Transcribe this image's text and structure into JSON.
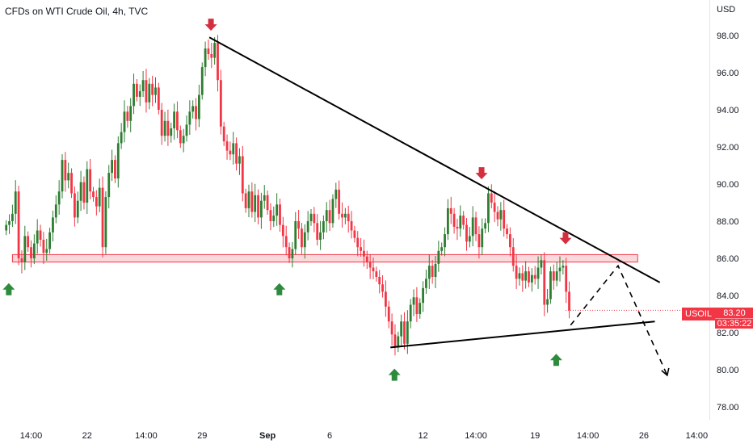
{
  "title": "CFDs on WTI Crude Oil, 4h, TVC",
  "currency": "USD",
  "symbol": "USOIL",
  "price": "83.20",
  "countdown": "03:35:22",
  "colors": {
    "up": "#26a69a",
    "upBody": "#2e7d32",
    "down": "#f23645",
    "zone": "#f8c8cc",
    "zoneStroke": "#f23645",
    "arrowUp": "#2e8b3e",
    "arrowDown": "#d32f3f"
  },
  "chart_data": {
    "type": "candlestick",
    "ylim": [
      77,
      100
    ],
    "y_ticks": [
      "98.00",
      "96.00",
      "94.00",
      "92.00",
      "90.00",
      "88.00",
      "86.00",
      "84.00",
      "82.00",
      "80.00",
      "78.00"
    ],
    "x_ticks": [
      {
        "label": "14:00",
        "i": 10,
        "bold": false
      },
      {
        "label": "22",
        "i": 28,
        "bold": false
      },
      {
        "label": "14:00",
        "i": 47,
        "bold": false
      },
      {
        "label": "29",
        "i": 65,
        "bold": false
      },
      {
        "label": "Sep",
        "i": 86,
        "bold": true
      },
      {
        "label": "6",
        "i": 106,
        "bold": false
      },
      {
        "label": "12",
        "i": 136,
        "bold": false
      },
      {
        "label": "14:00",
        "i": 153,
        "bold": false
      },
      {
        "label": "19",
        "i": 172,
        "bold": false
      },
      {
        "label": "14:00",
        "i": 189,
        "bold": false
      },
      {
        "label": "26",
        "i": 207,
        "bold": false
      },
      {
        "label": "14:00",
        "i": 224,
        "bold": false
      }
    ],
    "closes": [
      87.8,
      88.0,
      88.4,
      89.6,
      86.0,
      85.8,
      87.2,
      86.6,
      86.0,
      86.8,
      87.5,
      87.0,
      86.3,
      86.5,
      87.4,
      88.2,
      88.9,
      89.6,
      91.3,
      90.2,
      90.6,
      89.5,
      88.2,
      89.1,
      90.1,
      89.0,
      90.8,
      89.6,
      89.3,
      88.8,
      89.8,
      86.6,
      89.3,
      90.6,
      91.3,
      90.3,
      92.2,
      92.8,
      93.9,
      93.4,
      94.2,
      95.4,
      94.7,
      95.0,
      95.6,
      94.4,
      95.4,
      94.8,
      95.2,
      94.0,
      92.6,
      93.4,
      92.6,
      93.0,
      93.9,
      92.9,
      92.2,
      92.6,
      93.2,
      93.9,
      94.2,
      93.5,
      94.8,
      96.3,
      97.3,
      97.0,
      96.8,
      97.6,
      95.6,
      93.1,
      92.3,
      91.8,
      91.6,
      92.2,
      91.1,
      91.5,
      89.5,
      88.7,
      89.6,
      88.5,
      89.4,
      88.2,
      89.1,
      89.4,
      88.6,
      88.0,
      88.3,
      88.9,
      87.8,
      87.2,
      86.6,
      86.0,
      86.5,
      88.0,
      87.6,
      86.6,
      87.4,
      88.0,
      88.4,
      87.9,
      87.0,
      87.4,
      88.0,
      88.6,
      87.9,
      89.2,
      89.7,
      88.4,
      88.2,
      88.4,
      88.0,
      87.5,
      87.1,
      86.6,
      86.4,
      86.1,
      85.8,
      85.5,
      85.3,
      85.0,
      84.6,
      84.2,
      83.4,
      82.6,
      81.9,
      81.2,
      81.8,
      82.6,
      81.4,
      82.6,
      83.5,
      83.9,
      83.0,
      83.6,
      84.4,
      84.9,
      85.6,
      85.0,
      85.7,
      86.4,
      86.6,
      87.3,
      88.7,
      88.4,
      87.7,
      87.6,
      88.3,
      87.8,
      86.9,
      87.2,
      88.2,
      87.3,
      86.6,
      87.6,
      87.9,
      89.5,
      89.0,
      88.5,
      88.1,
      88.6,
      87.6,
      87.3,
      86.6,
      85.6,
      84.9,
      85.2,
      84.8,
      85.3,
      84.7,
      85.1,
      84.9,
      85.5,
      85.9,
      83.5,
      83.8,
      85.3,
      84.8,
      85.3,
      85.5,
      85.6,
      84.2,
      83.2
    ],
    "support_zone": [
      85.8,
      86.2
    ],
    "descending_trendline": [
      [
        66,
        97.9
      ],
      [
        222,
        84.7
      ]
    ],
    "ascending_trendline": [
      [
        125,
        81.2
      ],
      [
        210,
        82.6
      ]
    ],
    "projection": [
      [
        185,
        82.4
      ],
      [
        200,
        85.6
      ],
      [
        208,
        79.7
      ]
    ],
    "down_markers": [
      {
        "i": 66,
        "y": 98.3
      },
      {
        "i": 153,
        "y": 90.3
      },
      {
        "i": 180,
        "y": 86.8
      }
    ],
    "up_markers": [
      {
        "i": 1,
        "y": 85.4
      },
      {
        "i": 88,
        "y": 85.4
      },
      {
        "i": 125,
        "y": 80.8
      },
      {
        "i": 177,
        "y": 81.6
      }
    ]
  }
}
